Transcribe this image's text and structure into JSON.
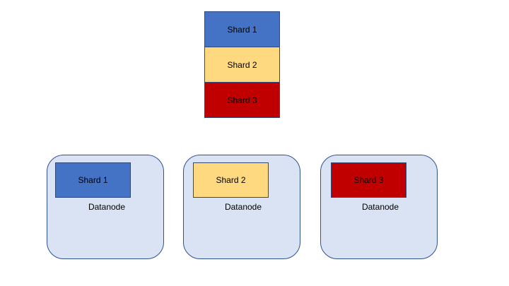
{
  "colors": {
    "shard1": "#4472c4",
    "shard2": "#ffd97f",
    "shard3": "#c00000",
    "datanode_fill": "#dae3f3",
    "datanode_border": "#2f528f"
  },
  "stack": {
    "shards": [
      {
        "label": "Shard 1"
      },
      {
        "label": "Shard 2"
      },
      {
        "label": "Shard 3"
      }
    ]
  },
  "datanodes": [
    {
      "label": "Datanode",
      "shard_label": "Shard 1"
    },
    {
      "label": "Datanode",
      "shard_label": "Shard 2"
    },
    {
      "label": "Datanode",
      "shard_label": "Shard 3"
    }
  ]
}
